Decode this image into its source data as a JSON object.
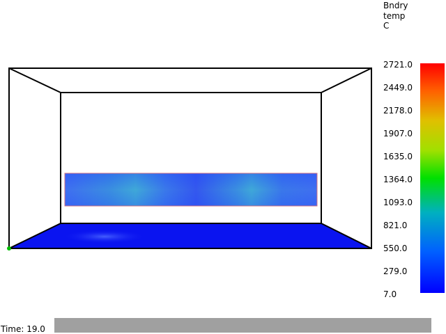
{
  "legend": {
    "title_lines": [
      "Bndry",
      "temp",
      "C"
    ],
    "ticks": [
      "2721.0",
      "2449.0",
      "2178.0",
      "1907.0",
      "1635.0",
      "1364.0",
      "1093.0",
      "821.0",
      "550.0",
      "279.0",
      "7.0"
    ],
    "range": [
      7.0,
      2721.0
    ],
    "colors": [
      "#0000ff",
      "#00b0c0",
      "#00e000",
      "#e0c000",
      "#ff0000"
    ]
  },
  "time": {
    "label": "Time: 19.0"
  },
  "scene": {
    "floor_color": "#0a14f0",
    "wall_panel_color": "#3a5ff0",
    "wall_panel_highlight": "#3fa8d8",
    "frame_color": "#000000",
    "origin_marker_color": "#00c000"
  }
}
